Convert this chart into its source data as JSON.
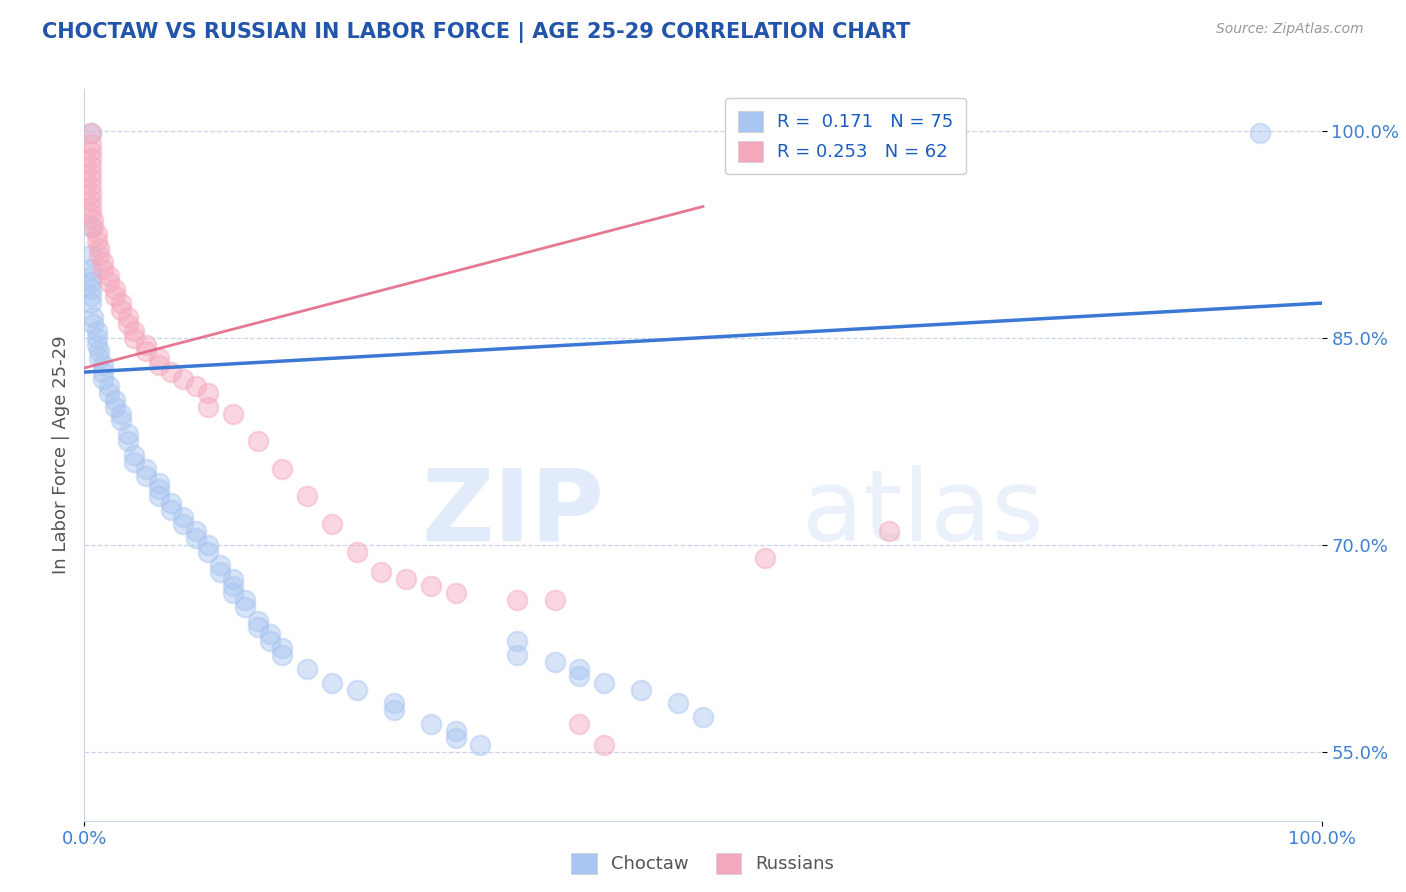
{
  "title": "CHOCTAW VS RUSSIAN IN LABOR FORCE | AGE 25-29 CORRELATION CHART",
  "source_text": "Source: ZipAtlas.com",
  "ylabel": "In Labor Force | Age 25-29",
  "xlim": [
    0.0,
    1.0
  ],
  "ylim": [
    0.5,
    1.03
  ],
  "xticks": [
    0.0,
    1.0
  ],
  "xtick_labels": [
    "0.0%",
    "100.0%"
  ],
  "ytick_positions": [
    0.55,
    0.7,
    0.85,
    1.0
  ],
  "ytick_labels": [
    "55.0%",
    "70.0%",
    "85.0%",
    "100.0%"
  ],
  "choctaw_color": "#a8c4f0",
  "russian_color": "#f4a8bc",
  "choctaw_line_color": "#3b78d4",
  "russian_line_color": "#e05878",
  "legend_R1": "0.171",
  "legend_N1": "75",
  "legend_R2": "0.253",
  "legend_N2": "62",
  "legend_label1": "Choctaw",
  "legend_label2": "Russians",
  "watermark_zip": "ZIP",
  "watermark_atlas": "atlas",
  "background_color": "#ffffff",
  "choctaw_scatter": [
    [
      0.005,
      0.998
    ],
    [
      0.005,
      0.93
    ],
    [
      0.005,
      0.91
    ],
    [
      0.005,
      0.9
    ],
    [
      0.005,
      0.895
    ],
    [
      0.005,
      0.89
    ],
    [
      0.005,
      0.885
    ],
    [
      0.005,
      0.88
    ],
    [
      0.005,
      0.875
    ],
    [
      0.007,
      0.865
    ],
    [
      0.007,
      0.86
    ],
    [
      0.01,
      0.855
    ],
    [
      0.01,
      0.85
    ],
    [
      0.01,
      0.845
    ],
    [
      0.012,
      0.84
    ],
    [
      0.012,
      0.835
    ],
    [
      0.015,
      0.83
    ],
    [
      0.015,
      0.825
    ],
    [
      0.015,
      0.82
    ],
    [
      0.02,
      0.815
    ],
    [
      0.02,
      0.81
    ],
    [
      0.025,
      0.805
    ],
    [
      0.025,
      0.8
    ],
    [
      0.03,
      0.795
    ],
    [
      0.03,
      0.79
    ],
    [
      0.035,
      0.78
    ],
    [
      0.035,
      0.775
    ],
    [
      0.04,
      0.765
    ],
    [
      0.04,
      0.76
    ],
    [
      0.05,
      0.755
    ],
    [
      0.05,
      0.75
    ],
    [
      0.06,
      0.745
    ],
    [
      0.06,
      0.74
    ],
    [
      0.06,
      0.735
    ],
    [
      0.07,
      0.73
    ],
    [
      0.07,
      0.725
    ],
    [
      0.08,
      0.72
    ],
    [
      0.08,
      0.715
    ],
    [
      0.09,
      0.71
    ],
    [
      0.09,
      0.705
    ],
    [
      0.1,
      0.7
    ],
    [
      0.1,
      0.695
    ],
    [
      0.11,
      0.685
    ],
    [
      0.11,
      0.68
    ],
    [
      0.12,
      0.675
    ],
    [
      0.12,
      0.67
    ],
    [
      0.12,
      0.665
    ],
    [
      0.13,
      0.66
    ],
    [
      0.13,
      0.655
    ],
    [
      0.14,
      0.645
    ],
    [
      0.14,
      0.64
    ],
    [
      0.15,
      0.635
    ],
    [
      0.15,
      0.63
    ],
    [
      0.16,
      0.625
    ],
    [
      0.16,
      0.62
    ],
    [
      0.18,
      0.61
    ],
    [
      0.2,
      0.6
    ],
    [
      0.22,
      0.595
    ],
    [
      0.25,
      0.585
    ],
    [
      0.25,
      0.58
    ],
    [
      0.28,
      0.57
    ],
    [
      0.3,
      0.565
    ],
    [
      0.3,
      0.56
    ],
    [
      0.32,
      0.555
    ],
    [
      0.35,
      0.63
    ],
    [
      0.35,
      0.62
    ],
    [
      0.38,
      0.615
    ],
    [
      0.4,
      0.61
    ],
    [
      0.4,
      0.605
    ],
    [
      0.42,
      0.6
    ],
    [
      0.45,
      0.595
    ],
    [
      0.48,
      0.585
    ],
    [
      0.5,
      0.575
    ],
    [
      0.95,
      0.998
    ]
  ],
  "russian_scatter": [
    [
      0.005,
      0.998
    ],
    [
      0.005,
      0.99
    ],
    [
      0.005,
      0.985
    ],
    [
      0.005,
      0.98
    ],
    [
      0.005,
      0.975
    ],
    [
      0.005,
      0.97
    ],
    [
      0.005,
      0.965
    ],
    [
      0.005,
      0.96
    ],
    [
      0.005,
      0.955
    ],
    [
      0.005,
      0.95
    ],
    [
      0.005,
      0.945
    ],
    [
      0.005,
      0.94
    ],
    [
      0.007,
      0.935
    ],
    [
      0.007,
      0.93
    ],
    [
      0.01,
      0.925
    ],
    [
      0.01,
      0.92
    ],
    [
      0.012,
      0.915
    ],
    [
      0.012,
      0.91
    ],
    [
      0.015,
      0.905
    ],
    [
      0.015,
      0.9
    ],
    [
      0.02,
      0.895
    ],
    [
      0.02,
      0.89
    ],
    [
      0.025,
      0.885
    ],
    [
      0.025,
      0.88
    ],
    [
      0.03,
      0.875
    ],
    [
      0.03,
      0.87
    ],
    [
      0.035,
      0.865
    ],
    [
      0.035,
      0.86
    ],
    [
      0.04,
      0.855
    ],
    [
      0.04,
      0.85
    ],
    [
      0.05,
      0.845
    ],
    [
      0.05,
      0.84
    ],
    [
      0.06,
      0.835
    ],
    [
      0.06,
      0.83
    ],
    [
      0.07,
      0.825
    ],
    [
      0.08,
      0.82
    ],
    [
      0.09,
      0.815
    ],
    [
      0.1,
      0.81
    ],
    [
      0.1,
      0.8
    ],
    [
      0.12,
      0.795
    ],
    [
      0.14,
      0.775
    ],
    [
      0.16,
      0.755
    ],
    [
      0.18,
      0.735
    ],
    [
      0.2,
      0.715
    ],
    [
      0.22,
      0.695
    ],
    [
      0.24,
      0.68
    ],
    [
      0.26,
      0.675
    ],
    [
      0.28,
      0.67
    ],
    [
      0.3,
      0.665
    ],
    [
      0.35,
      0.66
    ],
    [
      0.38,
      0.66
    ],
    [
      0.4,
      0.57
    ],
    [
      0.42,
      0.555
    ],
    [
      0.55,
      0.69
    ],
    [
      0.65,
      0.71
    ]
  ],
  "choctaw_line": [
    [
      0.0,
      0.825
    ],
    [
      1.0,
      0.875
    ]
  ],
  "russian_line": [
    [
      0.0,
      0.828
    ],
    [
      0.5,
      0.945
    ]
  ]
}
